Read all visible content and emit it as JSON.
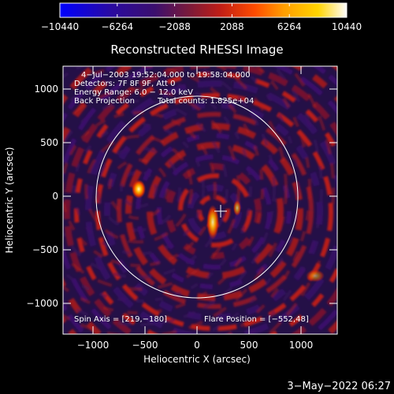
{
  "colorbar": {
    "tick_labels": [
      "−10440",
      "−6264",
      "−2088",
      "2088",
      "6264",
      "10440"
    ],
    "gradient": [
      "#0000ff",
      "#2a0aa0",
      "#3b0f6e",
      "#7a1a3a",
      "#c11e16",
      "#ff4c00",
      "#ff9d00",
      "#ffd400",
      "#ffffff"
    ]
  },
  "title": "Reconstructed RHESSI Image",
  "info": {
    "line1": "4−Jul−2003 19:52:04.000 to 19:58:04.000",
    "line2": "Detectors: 7F 8F 9F, Att 0",
    "line3": "Energy Range: 6.0 − 12.0 keV",
    "line4a": "Back Projection",
    "line4b": "Total counts: 1.825e+04",
    "spin_axis": "Spin Axis = [219,−180]",
    "flare_position": "Flare Position = [−552,48]"
  },
  "axes": {
    "xlabel": "Heliocentric X (arcsec)",
    "ylabel": "Heliocentric Y (arcsec)",
    "x_ticks": [
      "−1000",
      "−500",
      "0",
      "500",
      "1000"
    ],
    "y_ticks": [
      "1000",
      "500",
      "0",
      "−500",
      "−1000"
    ]
  },
  "footer_date": "3−May−2022 06:27",
  "colors": {
    "background": "#000000",
    "text": "#ffffff",
    "low": "#3b0f6e",
    "mid": "#c11e16",
    "high": "#ff9d00",
    "peak": "#ffffb0"
  }
}
